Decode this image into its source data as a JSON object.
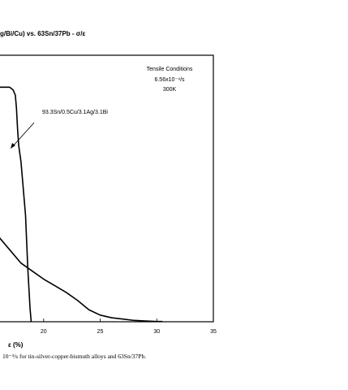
{
  "chart_data": {
    "type": "line",
    "title": "g/Bi/Cu) vs. 63Sn/37Pb - σ/ε",
    "xlabel": "ε  (%)",
    "ylabel": "",
    "x_ticks": [
      "20",
      "25",
      "30",
      "35"
    ],
    "xlim": [
      16,
      35
    ],
    "ylim": [
      0,
      100
    ],
    "grid": false,
    "conditions": {
      "heading": "Tensile Conditions",
      "rate": "6.56x10⁻⁴/s",
      "temperature": "300K"
    },
    "annotation": "93.3Sn/0.5Cu/3.1Ag/3.1Bi",
    "series": [
      {
        "name": "93.3Sn/0.5Cu/3.1Ag/3.1Bi",
        "x": [
          16.0,
          17.0,
          17.3,
          17.5,
          17.6,
          17.7,
          17.8,
          18.0,
          18.4,
          18.6,
          18.8,
          18.9
        ],
        "y": [
          88,
          88,
          87,
          85,
          80,
          72,
          66,
          60,
          40,
          20,
          5,
          0
        ]
      },
      {
        "name": "",
        "x": [
          16.0,
          17.0,
          18.0,
          19.0,
          20.0,
          21.0,
          22.0,
          23.0,
          24.0,
          25.0,
          26.0,
          27.0,
          28.0,
          29.0,
          30.0,
          30.5
        ],
        "y": [
          32,
          27,
          22,
          19,
          16,
          13.5,
          11,
          8,
          4.5,
          2.5,
          1.5,
          1.0,
          0.5,
          0.3,
          0.1,
          0.1
        ]
      }
    ]
  },
  "caption": "10⁻⁴/s for tin-silver-copper-bismuth alloys and 63Sn/37Pb."
}
